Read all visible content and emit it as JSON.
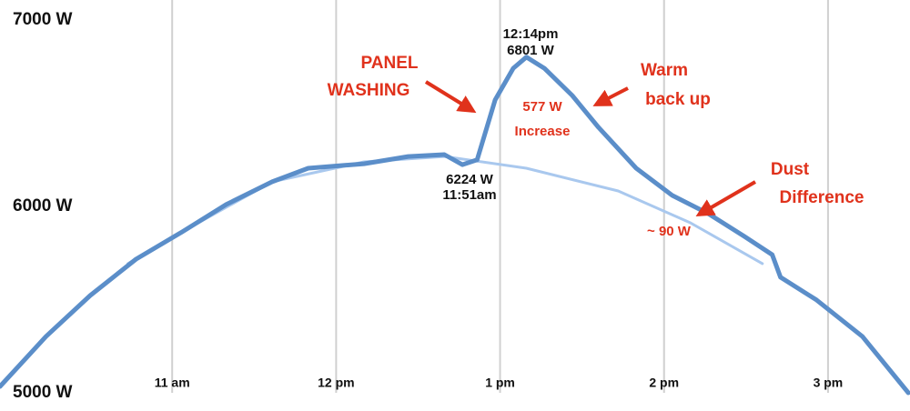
{
  "chart_data": {
    "type": "line",
    "xlim": [
      9.95,
      15.5
    ],
    "xticks": [
      {
        "value": 11,
        "label": "11 am"
      },
      {
        "value": 12,
        "label": "12 pm"
      },
      {
        "value": 13,
        "label": "1 pm"
      },
      {
        "value": 14,
        "label": "2 pm"
      },
      {
        "value": 15,
        "label": "3 pm"
      }
    ],
    "ylim": [
      5000,
      7000
    ],
    "yticks": [
      {
        "value": 7000,
        "label": "7000 W"
      },
      {
        "value": 6000,
        "label": "6000 W"
      },
      {
        "value": 5000,
        "label": "5000 W"
      }
    ],
    "grid": true,
    "series": [
      {
        "color": "#5b8ec9",
        "x": [
          9.95,
          10.23,
          10.5,
          10.78,
          11.06,
          11.33,
          11.61,
          11.83,
          12.17,
          12.44,
          12.66,
          12.77,
          12.86,
          12.97,
          13.08,
          13.16,
          13.27,
          13.44,
          13.6,
          13.83,
          14.05,
          14.27,
          14.49,
          14.66,
          14.71,
          14.93,
          15.21,
          15.49
        ],
        "values": [
          5034,
          5302,
          5522,
          5717,
          5863,
          6010,
          6132,
          6205,
          6229,
          6268,
          6278,
          6224,
          6250,
          6571,
          6741,
          6801,
          6741,
          6595,
          6424,
          6205,
          6059,
          5961,
          5839,
          5741,
          5620,
          5498,
          5302,
          5000
        ]
      },
      {
        "color": "#a9c8ee",
        "x": [
          10.73,
          11.06,
          11.61,
          12.17,
          12.66,
          13.16,
          13.72,
          14.16,
          14.6
        ],
        "values": [
          5693,
          5863,
          6132,
          6239,
          6268,
          6205,
          6083,
          5912,
          5693
        ]
      }
    ],
    "annotations": [
      "PANEL",
      "WASHING",
      "577 W",
      "Increase",
      "Warm",
      "back up",
      "Dust",
      "Difference",
      "~ 90 W",
      "12:14pm",
      "6801 W",
      "6224 W",
      "11:51am"
    ]
  }
}
